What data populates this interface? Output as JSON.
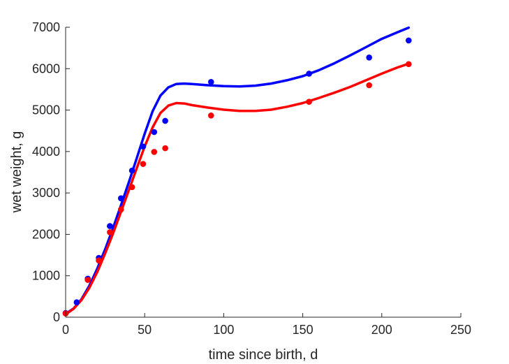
{
  "chart_data": {
    "type": "scatter",
    "xlabel": "time since birth, d",
    "ylabel": "wet weight, g",
    "xlim": [
      0,
      250
    ],
    "ylim": [
      0,
      7000
    ],
    "xticks": [
      "0",
      "50",
      "100",
      "150",
      "200",
      "250"
    ],
    "yticks": [
      "0",
      "1000",
      "2000",
      "3000",
      "4000",
      "5000",
      "6000",
      "7000"
    ],
    "grid": false,
    "legend": "none",
    "series": [
      {
        "type": "scatter",
        "color": "#0000ff",
        "points": [
          [
            0,
            100
          ],
          [
            7,
            360
          ],
          [
            14,
            930
          ],
          [
            21,
            1430
          ],
          [
            28,
            2200
          ],
          [
            35,
            2870
          ],
          [
            42,
            3540
          ],
          [
            49,
            4120
          ],
          [
            56,
            4470
          ],
          [
            63,
            4740
          ],
          [
            92,
            5680
          ],
          [
            154,
            5880
          ],
          [
            192,
            6270
          ],
          [
            217,
            6680
          ]
        ]
      },
      {
        "type": "scatter",
        "color": "#ff0000",
        "points": [
          [
            0,
            90
          ],
          [
            14,
            900
          ],
          [
            21,
            1370
          ],
          [
            28,
            2050
          ],
          [
            35,
            2600
          ],
          [
            42,
            3140
          ],
          [
            49,
            3700
          ],
          [
            56,
            3990
          ],
          [
            63,
            4080
          ],
          [
            92,
            4870
          ],
          [
            154,
            5200
          ],
          [
            192,
            5600
          ],
          [
            217,
            6110
          ]
        ]
      },
      {
        "type": "line",
        "color": "#0000ff",
        "points": [
          [
            0,
            80
          ],
          [
            5,
            210
          ],
          [
            10,
            430
          ],
          [
            15,
            760
          ],
          [
            20,
            1170
          ],
          [
            25,
            1640
          ],
          [
            30,
            2150
          ],
          [
            35,
            2700
          ],
          [
            40,
            3260
          ],
          [
            45,
            3840
          ],
          [
            50,
            4430
          ],
          [
            55,
            4970
          ],
          [
            60,
            5350
          ],
          [
            65,
            5550
          ],
          [
            70,
            5630
          ],
          [
            75,
            5640
          ],
          [
            80,
            5630
          ],
          [
            90,
            5600
          ],
          [
            100,
            5580
          ],
          [
            110,
            5570
          ],
          [
            120,
            5590
          ],
          [
            130,
            5640
          ],
          [
            140,
            5720
          ],
          [
            150,
            5820
          ],
          [
            160,
            5960
          ],
          [
            170,
            6130
          ],
          [
            180,
            6320
          ],
          [
            190,
            6520
          ],
          [
            200,
            6720
          ],
          [
            210,
            6880
          ],
          [
            217,
            6990
          ]
        ]
      },
      {
        "type": "line",
        "color": "#ff0000",
        "points": [
          [
            0,
            70
          ],
          [
            5,
            200
          ],
          [
            10,
            410
          ],
          [
            15,
            710
          ],
          [
            20,
            1090
          ],
          [
            25,
            1540
          ],
          [
            30,
            2020
          ],
          [
            35,
            2540
          ],
          [
            40,
            3070
          ],
          [
            45,
            3600
          ],
          [
            50,
            4120
          ],
          [
            55,
            4580
          ],
          [
            60,
            4930
          ],
          [
            65,
            5110
          ],
          [
            70,
            5170
          ],
          [
            75,
            5160
          ],
          [
            80,
            5120
          ],
          [
            90,
            5060
          ],
          [
            100,
            5010
          ],
          [
            110,
            4980
          ],
          [
            120,
            4980
          ],
          [
            130,
            5010
          ],
          [
            140,
            5080
          ],
          [
            150,
            5170
          ],
          [
            160,
            5290
          ],
          [
            170,
            5420
          ],
          [
            180,
            5560
          ],
          [
            190,
            5720
          ],
          [
            200,
            5880
          ],
          [
            210,
            6030
          ],
          [
            217,
            6120
          ]
        ]
      }
    ]
  }
}
